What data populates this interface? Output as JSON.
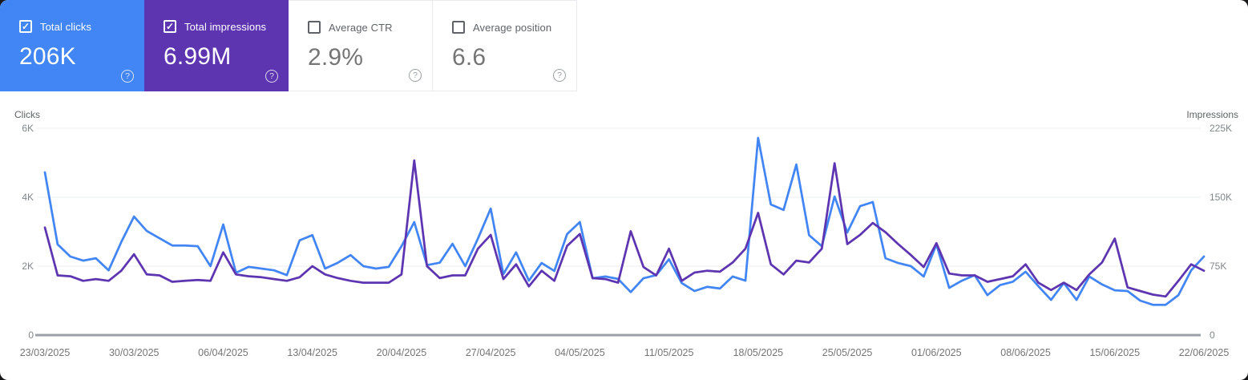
{
  "icons": {
    "check_glyph": "✓",
    "help_glyph": "?"
  },
  "cards": [
    {
      "label": "Total clicks",
      "value": "206K",
      "checked": true,
      "bg": "#4285f4",
      "label_color": "#ffffff",
      "value_color": "#ffffff",
      "checkbox_color": "#ffffff",
      "icon_color": "rgba(255,255,255,0.8)"
    },
    {
      "label": "Total impressions",
      "value": "6.99M",
      "checked": true,
      "bg": "#5e35b1",
      "label_color": "#ffffff",
      "value_color": "#ffffff",
      "checkbox_color": "#ffffff",
      "icon_color": "rgba(255,255,255,0.8)"
    },
    {
      "label": "Average CTR",
      "value": "2.9%",
      "checked": false,
      "bg": "#ffffff",
      "label_color": "#5f6368",
      "value_color": "#757575",
      "checkbox_color": "#5f6368",
      "icon_color": "#9aa0a6"
    },
    {
      "label": "Average position",
      "value": "6.6",
      "checked": false,
      "bg": "#ffffff",
      "label_color": "#5f6368",
      "value_color": "#757575",
      "checkbox_color": "#5f6368",
      "icon_color": "#9aa0a6"
    }
  ],
  "chart_data": {
    "type": "line",
    "grid": true,
    "grid_color": "#ebedf0",
    "baseline_color": "#9aa0a6",
    "legend_position": "cards",
    "x_tick_labels": [
      "23/03/2025",
      "30/03/2025",
      "06/04/2025",
      "13/04/2025",
      "20/04/2025",
      "27/04/2025",
      "04/05/2025",
      "11/05/2025",
      "18/05/2025",
      "25/05/2025",
      "01/06/2025",
      "08/06/2025",
      "15/06/2025",
      "22/06/2025"
    ],
    "x_tick_step_days": 7,
    "left_axis": {
      "title": "Clicks",
      "max": 6000,
      "ticks": [
        {
          "label": "0",
          "value": 0
        },
        {
          "label": "2K",
          "value": 2000
        },
        {
          "label": "4K",
          "value": 4000
        },
        {
          "label": "6K",
          "value": 6000
        }
      ]
    },
    "right_axis": {
      "title": "Impressions",
      "max": 225000,
      "ticks": [
        {
          "label": "0",
          "value": 0
        },
        {
          "label": "75K",
          "value": 75000
        },
        {
          "label": "150K",
          "value": 150000
        },
        {
          "label": "225K",
          "value": 225000
        }
      ]
    },
    "series": [
      {
        "name": "Total clicks",
        "axis": "left",
        "color": "#4285f4",
        "values": [
          4720,
          2630,
          2280,
          2160,
          2230,
          1880,
          2700,
          3440,
          3020,
          2810,
          2600,
          2600,
          2580,
          2000,
          3210,
          1810,
          1980,
          1930,
          1880,
          1740,
          2750,
          2900,
          1930,
          2100,
          2320,
          2000,
          1930,
          1980,
          2580,
          3280,
          2030,
          2100,
          2650,
          2000,
          2800,
          3670,
          1770,
          2400,
          1580,
          2090,
          1860,
          2930,
          3280,
          1650,
          1700,
          1630,
          1250,
          1650,
          1740,
          2200,
          1510,
          1280,
          1400,
          1350,
          1700,
          1580,
          5720,
          3790,
          3630,
          4950,
          2900,
          2580,
          4020,
          2980,
          3740,
          3860,
          2230,
          2090,
          2000,
          1700,
          2630,
          1370,
          1580,
          1740,
          1160,
          1450,
          1550,
          1840,
          1420,
          1020,
          1510,
          1020,
          1700,
          1470,
          1300,
          1280,
          1000,
          880,
          880,
          1160,
          1880,
          2280
        ]
      },
      {
        "name": "Total impressions",
        "axis": "right",
        "color": "#5e35b1",
        "values": [
          117000,
          65000,
          64000,
          59000,
          61000,
          59000,
          70000,
          88000,
          66000,
          65000,
          58000,
          59000,
          60000,
          59000,
          90000,
          66000,
          64000,
          63000,
          61000,
          59000,
          63000,
          75000,
          66000,
          62000,
          59000,
          57000,
          57000,
          57000,
          66000,
          190000,
          75000,
          62000,
          65000,
          65000,
          94000,
          109000,
          61000,
          77000,
          53000,
          70000,
          59000,
          97000,
          110000,
          62000,
          61000,
          57000,
          113000,
          74000,
          65000,
          94000,
          59000,
          68000,
          70000,
          69000,
          79000,
          94000,
          133000,
          77000,
          66000,
          81000,
          79000,
          94000,
          187000,
          99000,
          109000,
          122000,
          112000,
          99000,
          87000,
          74000,
          100000,
          67000,
          65000,
          65000,
          58000,
          61000,
          64000,
          77000,
          57000,
          49000,
          57000,
          49000,
          66000,
          79000,
          105000,
          52000,
          48000,
          44000,
          42000,
          59000,
          77000,
          70000
        ]
      }
    ]
  }
}
